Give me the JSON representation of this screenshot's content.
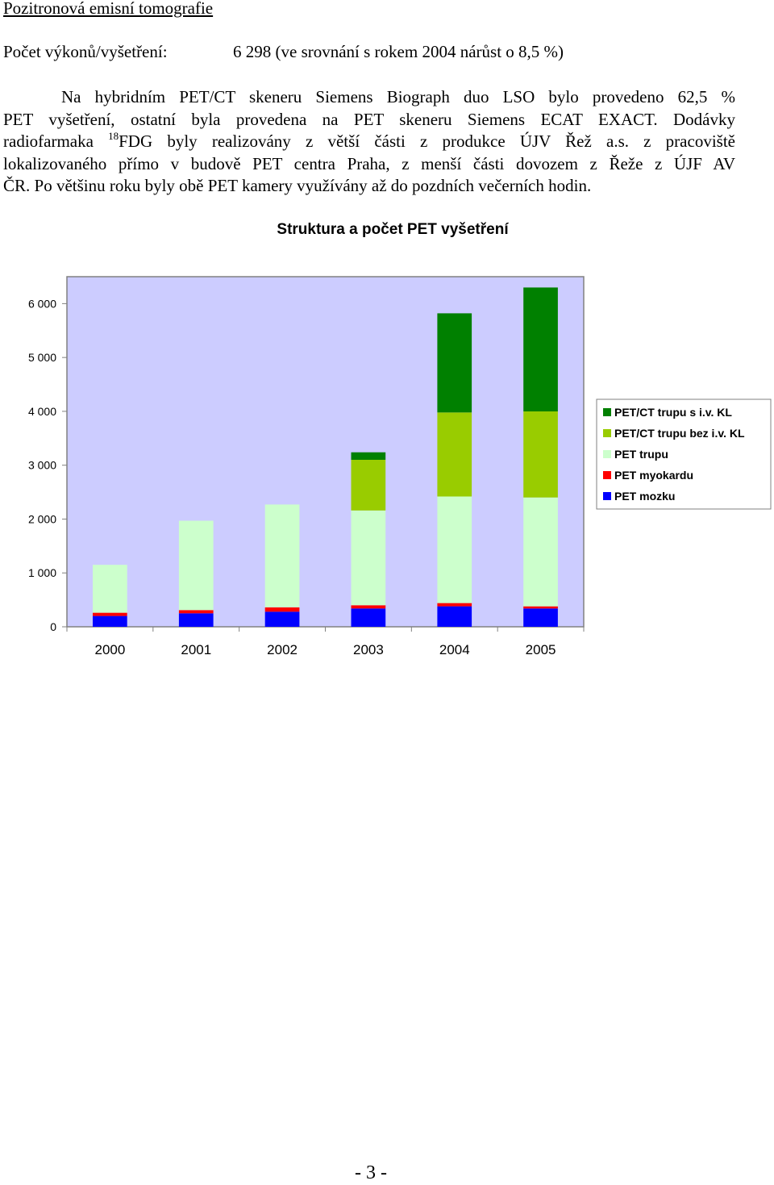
{
  "section_heading": "Pozitronová emisní tomografie",
  "stats": {
    "label": "Počet výkonů/vyšetření:",
    "value": "6 298 (ve srovnání s rokem 2004 nárůst o 8,5 %)"
  },
  "paragraph": {
    "line1": "Na hybridním PET/CT skeneru Siemens Biograph duo LSO bylo provedeno 62,5 %",
    "line2": "PET vyšetření, ostatní byla provedena na PET skeneru Siemens ECAT EXACT. Dodávky",
    "line3_a": "radiofarmaka ",
    "line3_sup": "18",
    "line3_b": "FDG byly realizovány z větší části z produkce ÚJV Řež a.s. z pracoviště",
    "line4": "lokalizovaného přímo v budově PET centra Praha, z menší části dovozem z Řeže z ÚJF AV",
    "line5": "ČR. Po většinu roku byly obě PET kamery využívány až do pozdních večerních hodin."
  },
  "chart_data": {
    "type": "bar",
    "stacked": true,
    "title": "Struktura a počet PET vyšetření",
    "categories": [
      "2000",
      "2001",
      "2002",
      "2003",
      "2004",
      "2005"
    ],
    "ylim": [
      0,
      6500
    ],
    "yticks": [
      0,
      1000,
      2000,
      3000,
      4000,
      5000,
      6000
    ],
    "ytick_labels": [
      "0",
      "1 000",
      "2 000",
      "3 000",
      "4 000",
      "5 000",
      "6 000"
    ],
    "grid": false,
    "legend_position": "right",
    "plot_background": "#ccccff",
    "series": [
      {
        "name": "PET mozku",
        "color": "#0000ff",
        "values": [
          200,
          250,
          280,
          340,
          380,
          340
        ]
      },
      {
        "name": "PET myokardu",
        "color": "#ff0000",
        "values": [
          60,
          60,
          80,
          60,
          60,
          40
        ]
      },
      {
        "name": "PET trupu",
        "color": "#ccffcc",
        "values": [
          890,
          1660,
          1910,
          1760,
          1980,
          2020
        ]
      },
      {
        "name": "PET/CT trupu bez i.v. KL",
        "color": "#99cc00",
        "values": [
          0,
          0,
          0,
          940,
          1560,
          1600
        ]
      },
      {
        "name": "PET/CT trupu s i.v. KL",
        "color": "#008000",
        "values": [
          0,
          0,
          0,
          140,
          1840,
          2300
        ]
      }
    ]
  },
  "page_number": "- 3 -"
}
